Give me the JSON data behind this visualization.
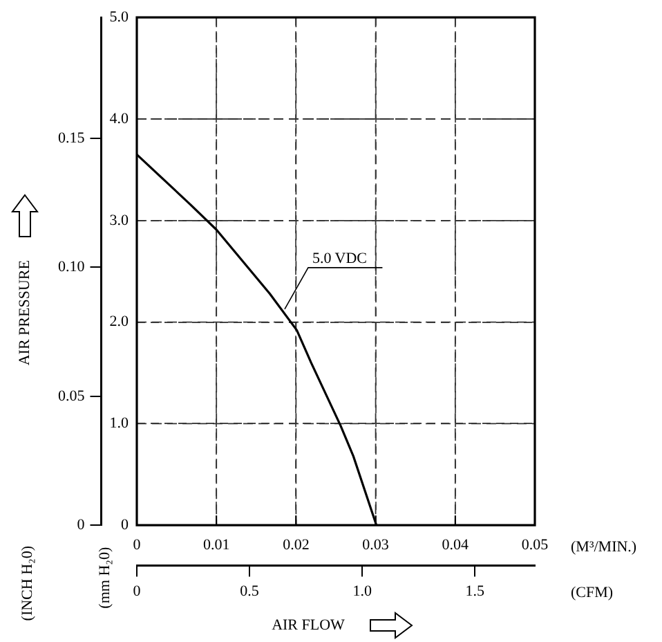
{
  "chart_data": {
    "type": "line",
    "series": [
      {
        "name": "5.0 VDC",
        "color": "#000000",
        "x": [
          0,
          0.0067,
          0.01,
          0.0167,
          0.0201,
          0.0219,
          0.0256,
          0.0272,
          0.0301
        ],
        "values": [
          3.65,
          3.16,
          2.91,
          2.28,
          1.92,
          1.6,
          0.98,
          0.68,
          0
        ]
      }
    ],
    "xlim": [
      0,
      0.05
    ],
    "xticks": [
      0,
      0.01,
      0.02,
      0.03,
      0.04,
      0.05
    ],
    "ylim": [
      0,
      5
    ],
    "yticks": [
      0,
      {
        "value": 1,
        "label": "1.0"
      },
      {
        "value": 2,
        "label": "2.0"
      },
      {
        "value": 3,
        "label": "3.0"
      },
      {
        "value": 4,
        "label": "4.0"
      },
      {
        "value": 5,
        "label": "5.0"
      }
    ],
    "y2lim": [
      0,
      0.19685
    ],
    "y2ticks": [
      0,
      0.05,
      {
        "value": 0.1,
        "label": "0.10"
      },
      0.15
    ],
    "x2lim": [
      0,
      1.7657
    ],
    "x2ticks": [
      0,
      0.5,
      {
        "value": 1,
        "label": "1.0"
      },
      1.5
    ],
    "xlabel": "(M³/MIN.)",
    "x2label": "(CFM)",
    "ylabel": "(mm H₂0)",
    "y2label": "(INCH H₂0)",
    "annotations": [
      "AIR PRESSURE",
      "AIR FLOW"
    ],
    "grid": true,
    "legend": false,
    "marker": "none",
    "line_style": "solid"
  }
}
